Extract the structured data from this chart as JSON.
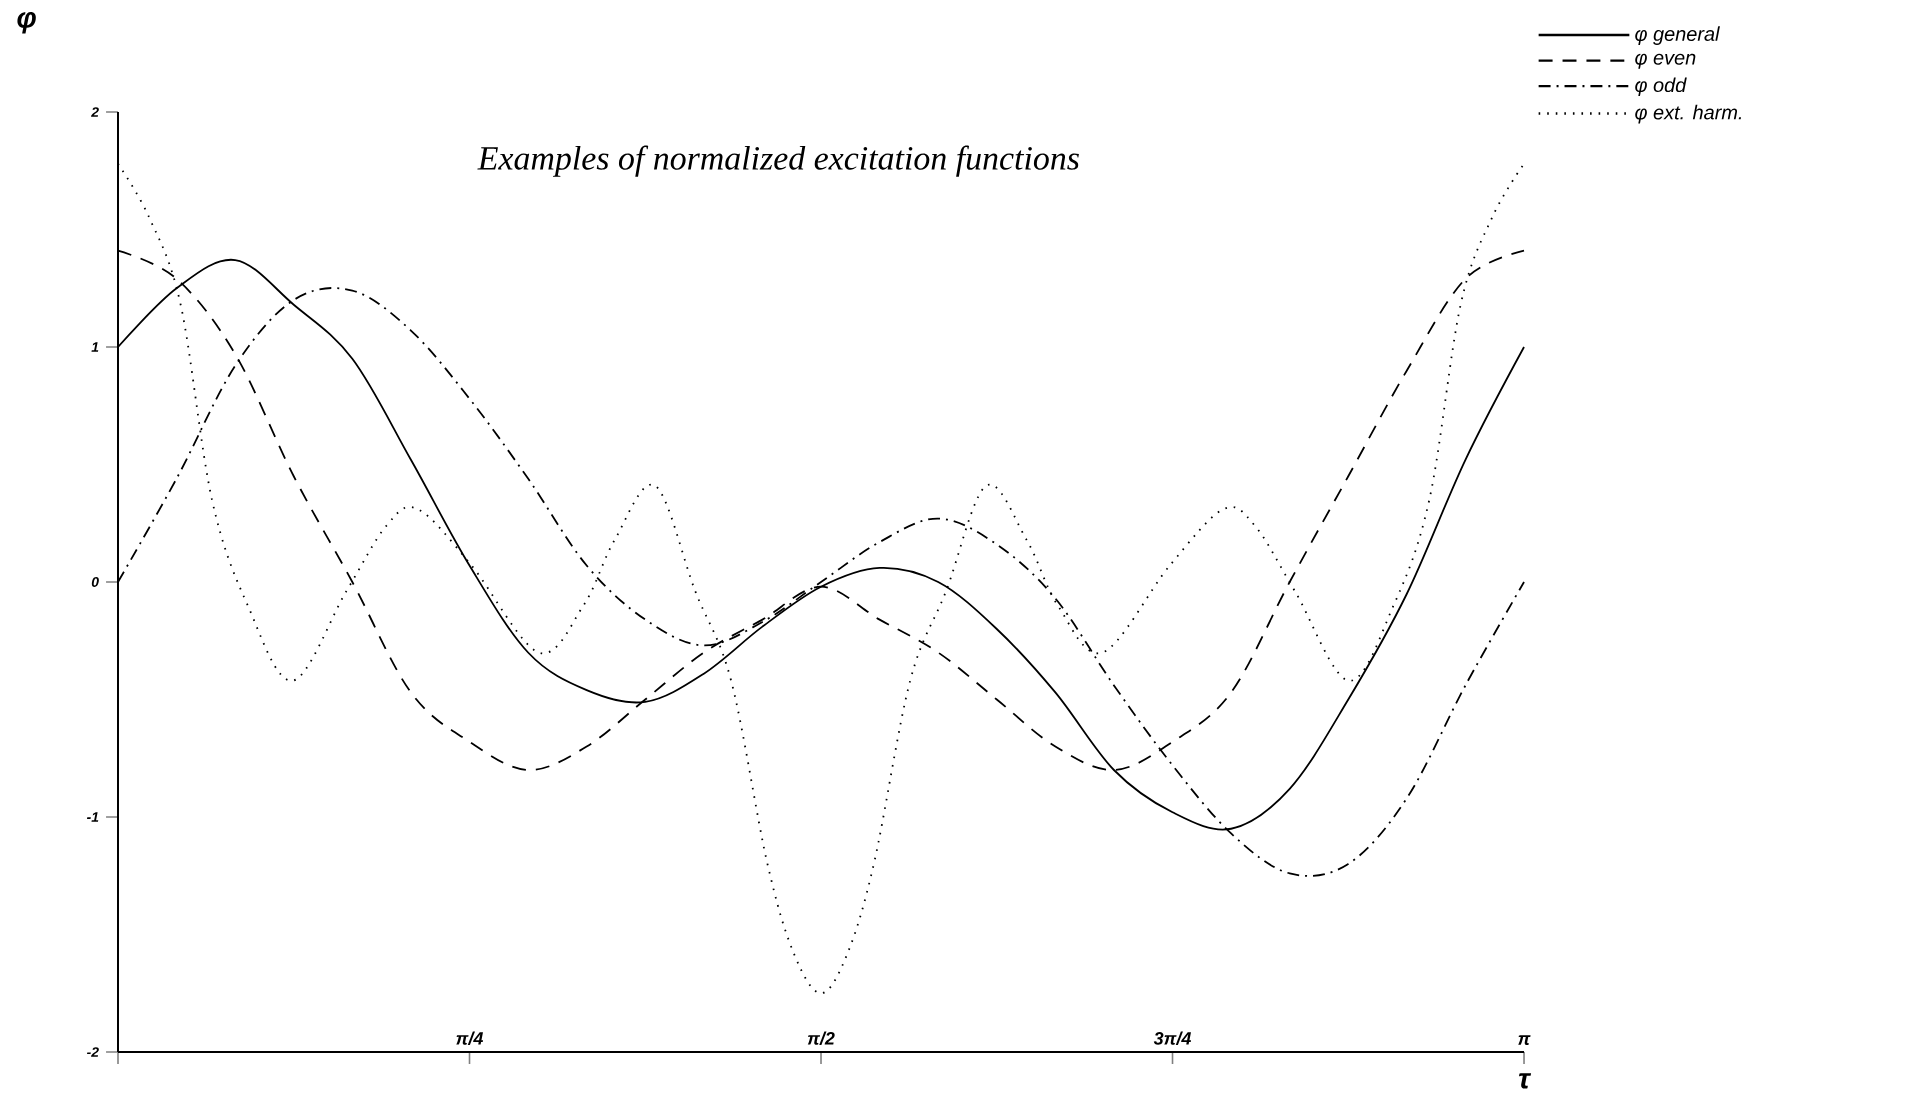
{
  "chart_data": {
    "type": "line",
    "title": "Examples of normalized excitation functions",
    "xlabel": "τ",
    "ylabel": "φ",
    "xlim": [
      0,
      3.1416
    ],
    "ylim": [
      -2,
      2
    ],
    "xticks": [
      {
        "value": 0,
        "label": null
      },
      {
        "value": 0.7854,
        "label": "π/4"
      },
      {
        "value": 1.5708,
        "label": "π/2"
      },
      {
        "value": 2.3562,
        "label": "3π/4"
      },
      {
        "value": 3.1416,
        "label": "π"
      }
    ],
    "yticks": [
      -2,
      -1,
      0,
      1,
      2
    ],
    "x": [
      0,
      0.1309,
      0.2618,
      0.3927,
      0.5236,
      0.6545,
      0.7854,
      0.9163,
      1.0472,
      1.1781,
      1.309,
      1.4399,
      1.5708,
      1.7017,
      1.8326,
      1.9635,
      2.0944,
      2.2253,
      2.3562,
      2.4871,
      2.618,
      2.7489,
      2.8798,
      3.0107,
      3.1416
    ],
    "legend": "top right",
    "series": [
      {
        "name": "φ general",
        "color": "#000000",
        "line_style": "solid",
        "values": [
          1.0,
          1.25,
          1.37,
          1.18,
          0.95,
          0.52,
          0.07,
          -0.3,
          -0.46,
          -0.51,
          -0.39,
          -0.19,
          -0.02,
          0.06,
          0.0,
          -0.2,
          -0.47,
          -0.8,
          -0.98,
          -1.05,
          -0.88,
          -0.5,
          -0.05,
          0.52,
          1.0
        ]
      },
      {
        "name": "φ even",
        "color": "#000000",
        "line_style": "dashed",
        "values": [
          1.41,
          1.29,
          0.97,
          0.45,
          0.0,
          -0.47,
          -0.68,
          -0.8,
          -0.7,
          -0.5,
          -0.3,
          -0.16,
          -0.02,
          -0.16,
          -0.3,
          -0.5,
          -0.7,
          -0.8,
          -0.68,
          -0.47,
          0.0,
          0.45,
          0.9,
          1.29,
          1.41
        ]
      },
      {
        "name": "φ odd",
        "color": "#000000",
        "line_style": "dashdot",
        "values": [
          0,
          0.44,
          0.92,
          1.2,
          1.24,
          1.07,
          0.78,
          0.44,
          0.07,
          -0.16,
          -0.27,
          -0.17,
          0,
          0.17,
          0.27,
          0.16,
          -0.07,
          -0.44,
          -0.78,
          -1.07,
          -1.24,
          -1.2,
          -0.92,
          -0.44,
          0
        ]
      },
      {
        "name": "φ ext. harm.",
        "color": "#000000",
        "line_style": "dotted",
        "x": [
          0,
          0.07,
          0.14,
          0.21,
          0.29,
          0.39,
          0.51,
          0.6,
          0.67,
          0.79,
          0.94,
          1.04,
          1.11,
          1.2,
          1.29,
          1.37,
          1.45,
          1.51,
          1.5708,
          1.63,
          1.69,
          1.77,
          1.85,
          1.94,
          2.03,
          2.1,
          2.2,
          2.35,
          2.47,
          2.54,
          2.63,
          2.75,
          2.85,
          2.93,
          3.0,
          3.07,
          3.1416
        ],
        "values": [
          1.78,
          1.55,
          1.18,
          0.35,
          -0.1,
          -0.42,
          -0.04,
          0.24,
          0.31,
          0.07,
          -0.3,
          -0.1,
          0.18,
          0.41,
          -0.04,
          -0.42,
          -1.19,
          -1.58,
          -1.75,
          -1.58,
          -1.19,
          -0.42,
          -0.04,
          0.41,
          0.18,
          -0.1,
          -0.3,
          0.07,
          0.31,
          0.24,
          -0.04,
          -0.42,
          -0.1,
          0.35,
          1.18,
          1.55,
          1.78
        ]
      }
    ]
  }
}
